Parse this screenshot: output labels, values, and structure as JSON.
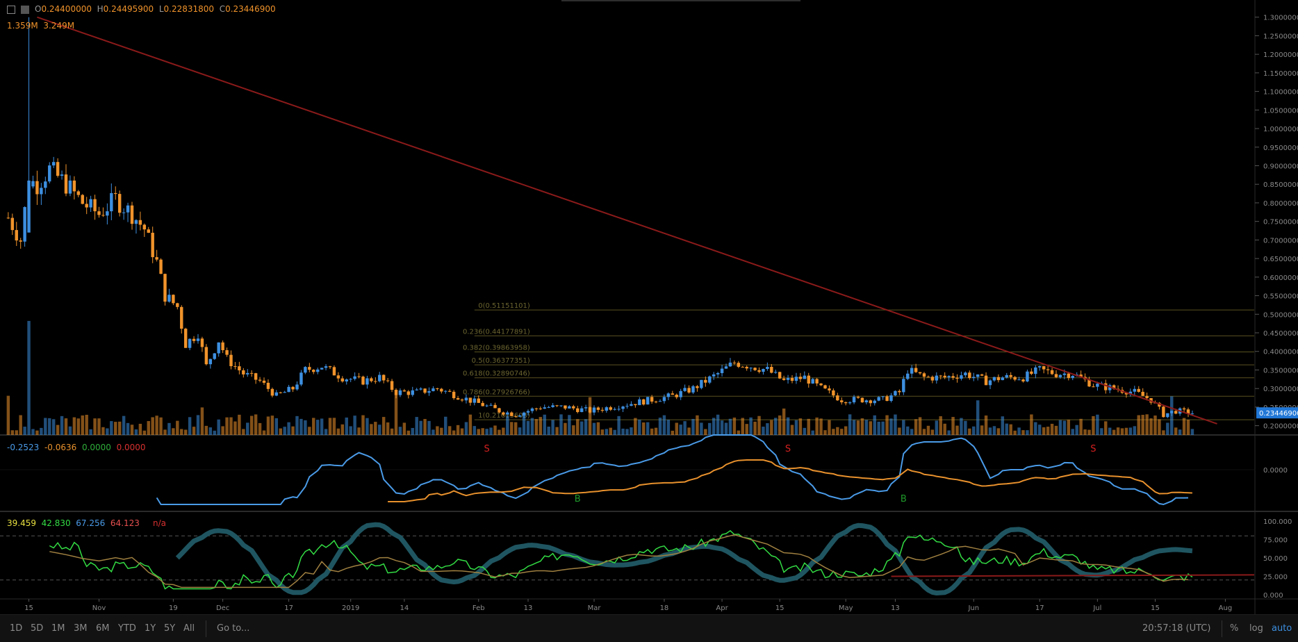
{
  "header": {
    "o_label": "O",
    "o_value": "0.24400000",
    "h_label": "H",
    "h_value": "0.24495900",
    "l_label": "L",
    "l_value": "0.22831800",
    "c_label": "C",
    "c_value": "0.23446900",
    "vol1": "1.359M",
    "vol2": "3.249M"
  },
  "indicator1_header": [
    "-0.2523",
    "-0.0636",
    "0.0000",
    "0.0000"
  ],
  "indicator2_header": [
    "39.459",
    "42.830",
    "67.256",
    "64.123",
    "n/a"
  ],
  "last_price_tag": "0.23446900",
  "signals": {
    "sells": [
      {
        "label": "S",
        "date": "2019-02-03"
      },
      {
        "label": "S",
        "date": "2019-04-17"
      },
      {
        "label": "S",
        "date": "2019-06-30"
      }
    ],
    "buys": [
      {
        "label": "B",
        "date": "2019-02-25"
      },
      {
        "label": "B",
        "date": "2019-05-15"
      }
    ]
  },
  "fib_levels": [
    {
      "label": "0(0.51151101)",
      "value": 0.51151101
    },
    {
      "label": "0.236(0.44177891)",
      "value": 0.44177891
    },
    {
      "label": "0.382(0.39863958)",
      "value": 0.39863958
    },
    {
      "label": "0.5(0.36377351)",
      "value": 0.36377351
    },
    {
      "label": "0.618(0.32890746)",
      "value": 0.32890746
    },
    {
      "label": "0.786(0.27926766)",
      "value": 0.27926766
    },
    {
      "label": "1(0.21603603)",
      "value": 0.21603603
    }
  ],
  "osc2_levels": [
    "100.000",
    "75.000",
    "50.000",
    "25.000",
    "0.000"
  ],
  "osc1_levels": [
    "0.0000"
  ],
  "bottom_bar": {
    "ranges": [
      "1D",
      "5D",
      "1M",
      "3M",
      "6M",
      "YTD",
      "1Y",
      "5Y",
      "All"
    ],
    "goto": "Go to...",
    "time": "20:57:18 (UTC)",
    "percent": "%",
    "log": "log",
    "auto": "auto"
  },
  "colors": {
    "up": "#3d8fe0",
    "down": "#f0932b",
    "trendline": "#8b1a1a",
    "fib": "#5a5320",
    "macd": "#4a9be8",
    "signal": "#e8912d",
    "stoch_fill": "#1f5560",
    "rsi": "#33dd44",
    "rsi2": "#a08040"
  },
  "chart_data": {
    "type": "candlestick",
    "title": "",
    "x_ticks": [
      "15",
      "Nov",
      "19",
      "Dec",
      "17",
      "2019",
      "14",
      "Feb",
      "13",
      "Mar",
      "18",
      "Apr",
      "15",
      "May",
      "13",
      "Jun",
      "17",
      "Jul",
      "15",
      "Aug"
    ],
    "x_tick_dates": [
      "2018-10-15",
      "2018-11-01",
      "2018-11-19",
      "2018-12-01",
      "2018-12-17",
      "2019-01-01",
      "2019-01-14",
      "2019-02-01",
      "2019-02-13",
      "2019-03-01",
      "2019-03-18",
      "2019-04-01",
      "2019-04-15",
      "2019-05-01",
      "2019-05-13",
      "2019-06-01",
      "2019-06-17",
      "2019-07-01",
      "2019-07-15",
      "2019-08-01"
    ],
    "y_ticks": [
      1.3,
      1.25,
      1.2,
      1.15,
      1.1,
      1.05,
      1.0,
      0.95,
      0.9,
      0.85,
      0.8,
      0.75,
      0.7,
      0.65,
      0.6,
      0.55,
      0.5,
      0.45,
      0.4,
      0.35,
      0.3,
      0.25,
      0.2
    ],
    "y_tick_labels": [
      "1.30000000",
      "1.25000000",
      "1.20000000",
      "1.15000000",
      "1.10000000",
      "1.05000000",
      "1.00000000",
      "0.95000000",
      "0.90000000",
      "0.85000000",
      "0.80000000",
      "0.75000000",
      "0.70000000",
      "0.65000000",
      "0.60000000",
      "0.55000000",
      "0.50000000",
      "0.45000000",
      "0.40000000",
      "0.35000000",
      "0.30000000",
      "0.25000000",
      "0.20000000"
    ],
    "ylim": [
      0.175,
      1.32
    ],
    "x_start": "2018-10-08",
    "x_end": "2019-08-08",
    "close_path": [
      [
        "2018-10-10",
        0.76
      ],
      [
        "2018-10-13",
        0.7
      ],
      [
        "2018-10-15",
        0.86
      ],
      [
        "2018-10-17",
        0.85
      ],
      [
        "2018-10-20",
        0.89
      ],
      [
        "2018-10-24",
        0.85
      ],
      [
        "2018-10-28",
        0.8
      ],
      [
        "2018-11-01",
        0.77
      ],
      [
        "2018-11-05",
        0.81
      ],
      [
        "2018-11-09",
        0.77
      ],
      [
        "2018-11-12",
        0.73
      ],
      [
        "2018-11-15",
        0.64
      ],
      [
        "2018-11-17",
        0.55
      ],
      [
        "2018-11-20",
        0.52
      ],
      [
        "2018-11-22",
        0.42
      ],
      [
        "2018-11-25",
        0.45
      ],
      [
        "2018-11-27",
        0.36
      ],
      [
        "2018-11-30",
        0.43
      ],
      [
        "2018-12-02",
        0.38
      ],
      [
        "2018-12-06",
        0.34
      ],
      [
        "2018-12-10",
        0.32
      ],
      [
        "2018-12-14",
        0.28
      ],
      [
        "2018-12-18",
        0.3
      ],
      [
        "2018-12-21",
        0.35
      ],
      [
        "2018-12-25",
        0.36
      ],
      [
        "2018-12-30",
        0.33
      ],
      [
        "2019-01-04",
        0.32
      ],
      [
        "2019-01-08",
        0.33
      ],
      [
        "2019-01-12",
        0.29
      ],
      [
        "2019-01-17",
        0.29
      ],
      [
        "2019-01-22",
        0.3
      ],
      [
        "2019-01-27",
        0.28
      ],
      [
        "2019-02-01",
        0.26
      ],
      [
        "2019-02-06",
        0.24
      ],
      [
        "2019-02-10",
        0.23
      ],
      [
        "2019-02-16",
        0.25
      ],
      [
        "2019-02-22",
        0.25
      ],
      [
        "2019-02-28",
        0.24
      ],
      [
        "2019-03-05",
        0.25
      ],
      [
        "2019-03-10",
        0.26
      ],
      [
        "2019-03-15",
        0.27
      ],
      [
        "2019-03-20",
        0.28
      ],
      [
        "2019-03-25",
        0.3
      ],
      [
        "2019-03-31",
        0.34
      ],
      [
        "2019-04-04",
        0.37
      ],
      [
        "2019-04-08",
        0.36
      ],
      [
        "2019-04-12",
        0.35
      ],
      [
        "2019-04-16",
        0.32
      ],
      [
        "2019-04-21",
        0.33
      ],
      [
        "2019-04-25",
        0.3
      ],
      [
        "2019-04-30",
        0.27
      ],
      [
        "2019-05-05",
        0.27
      ],
      [
        "2019-05-10",
        0.27
      ],
      [
        "2019-05-14",
        0.29
      ],
      [
        "2019-05-16",
        0.35
      ],
      [
        "2019-05-20",
        0.33
      ],
      [
        "2019-05-25",
        0.33
      ],
      [
        "2019-05-30",
        0.34
      ],
      [
        "2019-06-04",
        0.32
      ],
      [
        "2019-06-08",
        0.33
      ],
      [
        "2019-06-13",
        0.33
      ],
      [
        "2019-06-17",
        0.35
      ],
      [
        "2019-06-21",
        0.34
      ],
      [
        "2019-06-25",
        0.34
      ],
      [
        "2019-06-30",
        0.31
      ],
      [
        "2019-07-05",
        0.3
      ],
      [
        "2019-07-10",
        0.29
      ],
      [
        "2019-07-14",
        0.27
      ],
      [
        "2019-07-17",
        0.23
      ],
      [
        "2019-07-20",
        0.24
      ],
      [
        "2019-07-24",
        0.234
      ]
    ],
    "trendline": [
      [
        "2018-10-17",
        1.3
      ],
      [
        "2019-07-30",
        0.205
      ]
    ],
    "fib_range_dates": [
      "2019-01-31",
      "2019-08-08"
    ]
  }
}
